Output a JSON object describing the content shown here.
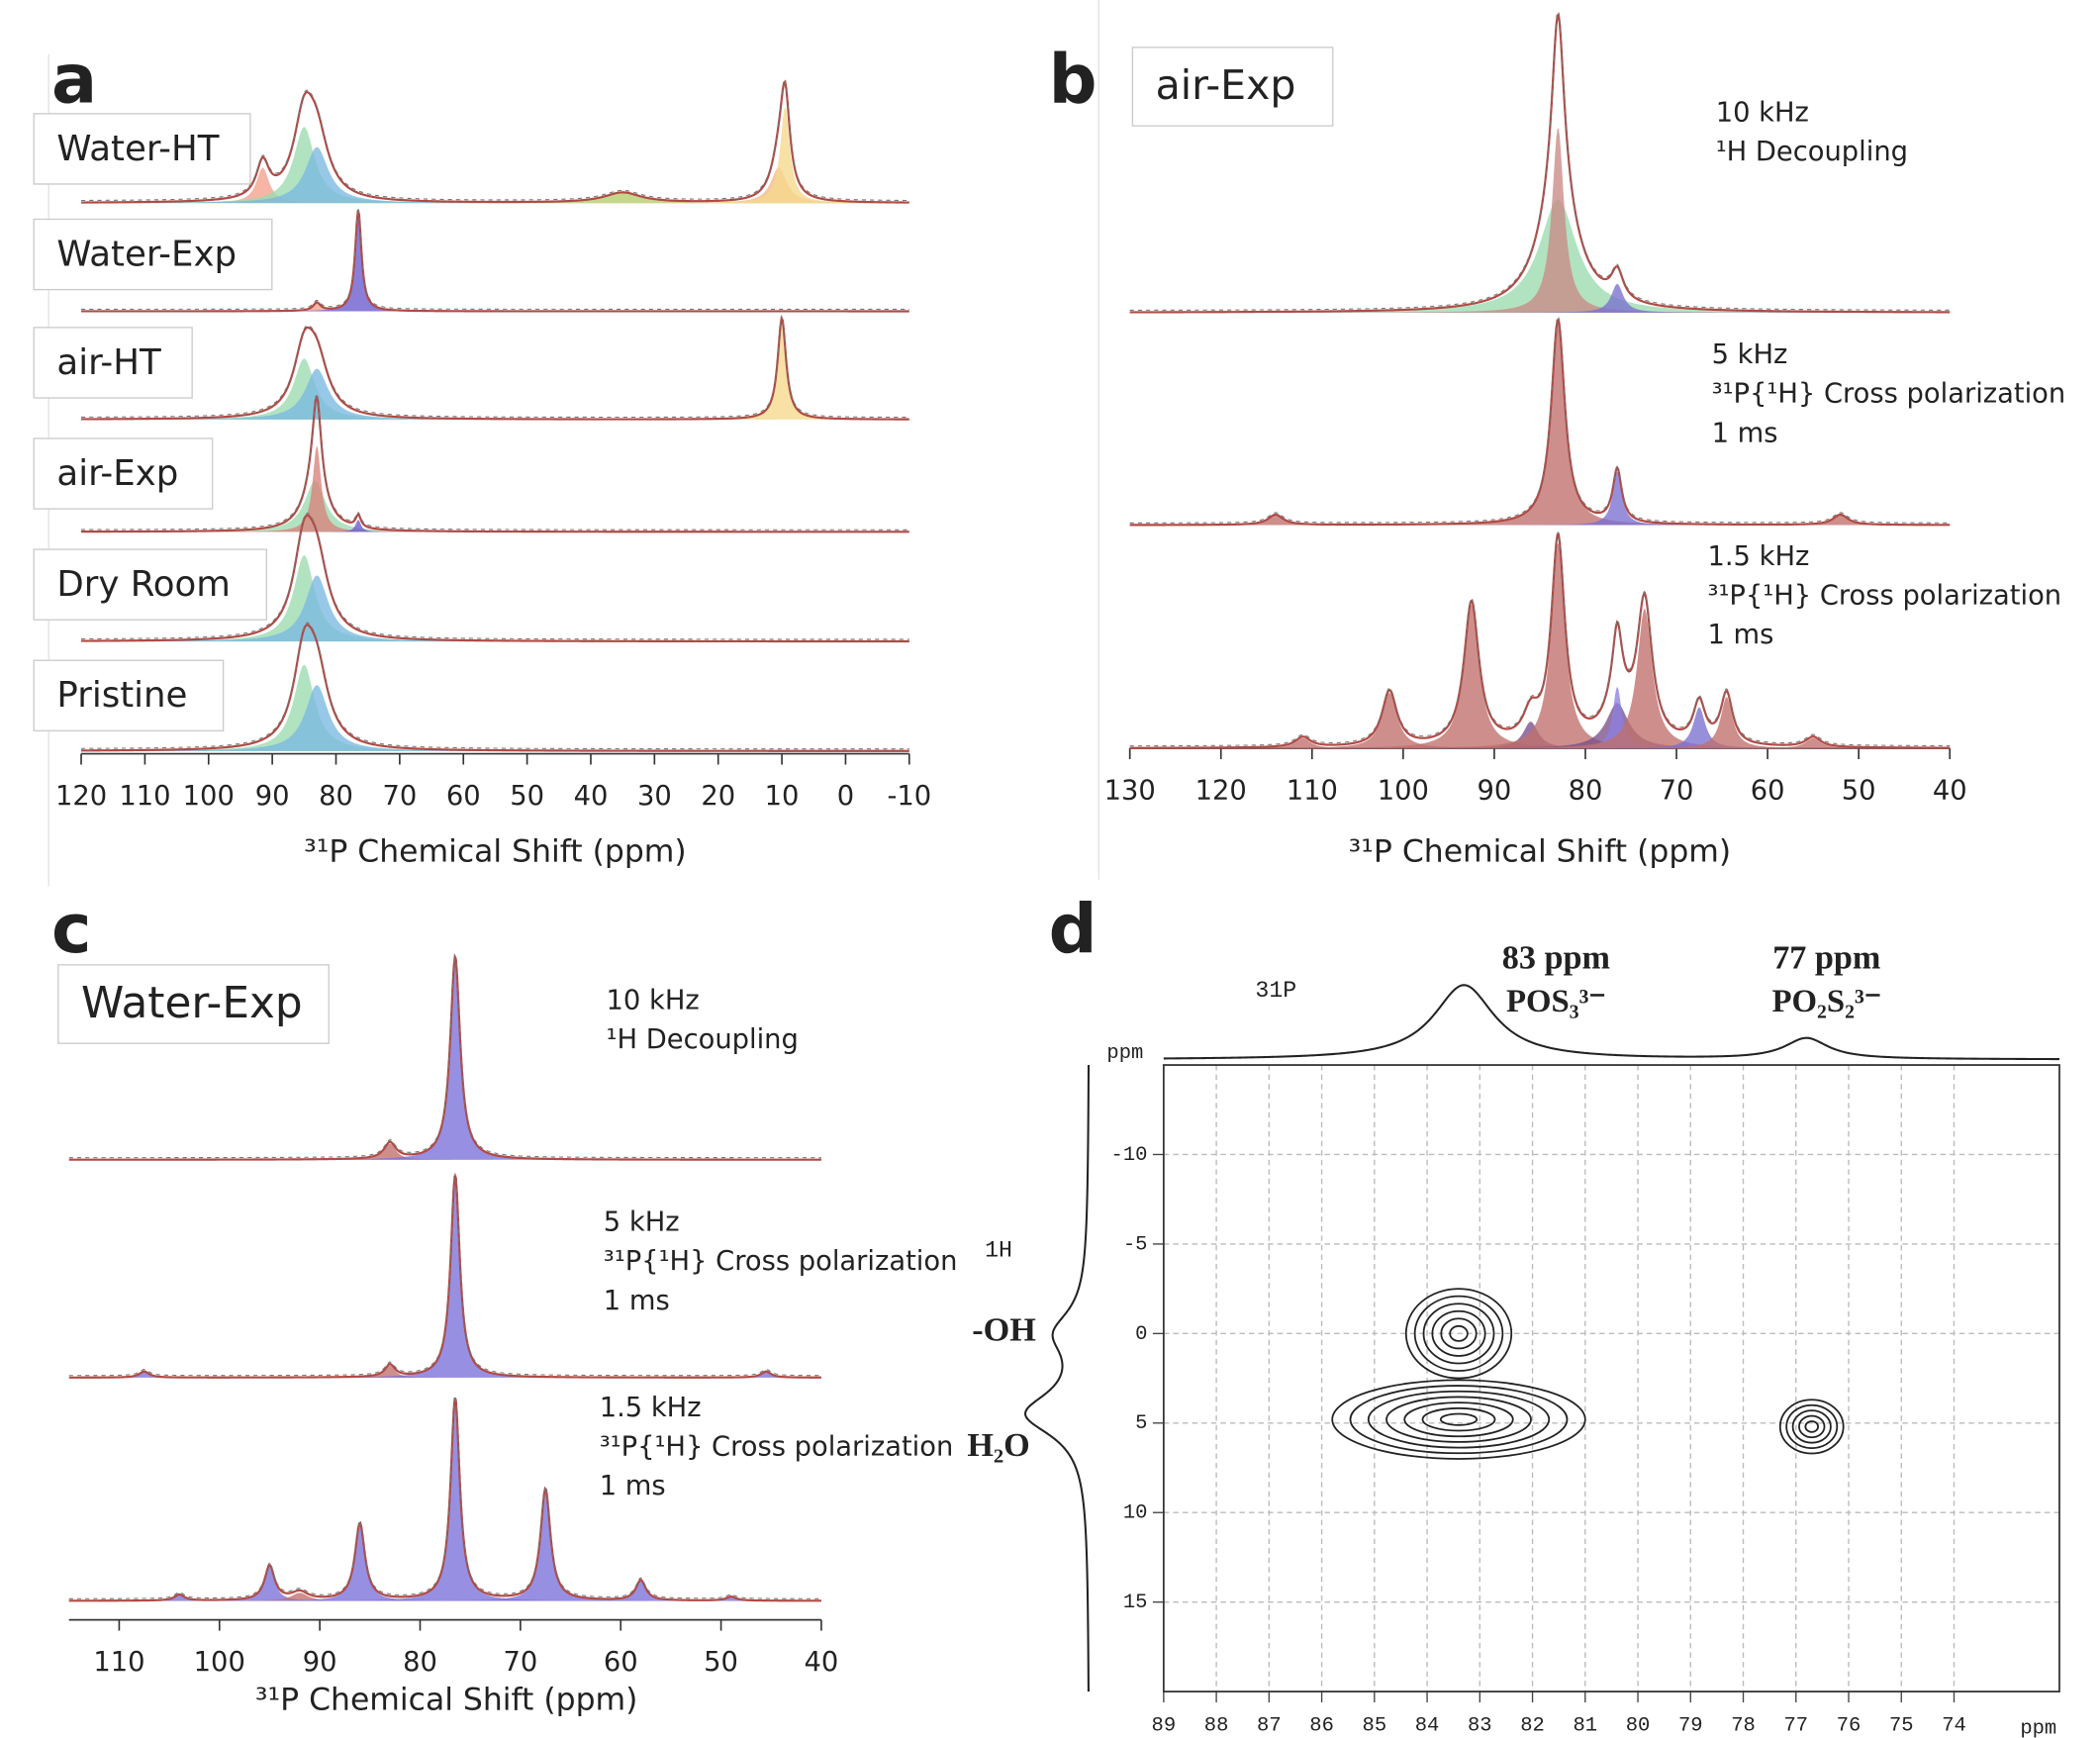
{
  "chart_data": [
    {
      "type": "spectrum",
      "panel_label": "a",
      "xlabel": "³¹P Chemical Shift (ppm)",
      "xlim": [
        120,
        -10
      ],
      "xticks": [
        120,
        110,
        100,
        90,
        80,
        70,
        60,
        50,
        40,
        30,
        20,
        10,
        0,
        -10
      ],
      "line_color": "#b04a45",
      "traces": [
        {
          "label": "Water-HT",
          "peaks": [
            {
              "center": 91.5,
              "height": 0.35,
              "width": 1.2,
              "color": "#f4a08c"
            },
            {
              "center": 85,
              "height": 0.75,
              "width": 2,
              "color": "#9bdbb0"
            },
            {
              "center": 83,
              "height": 0.55,
              "width": 2.2,
              "color": "#7ab8e0"
            },
            {
              "center": 35,
              "height": 0.1,
              "width": 3.5,
              "color": "#b5cc6a"
            },
            {
              "center": 10.5,
              "height": 0.35,
              "width": 1.5,
              "color": "#f4b98c"
            },
            {
              "center": 9.5,
              "height": 0.95,
              "width": 0.9,
              "color": "#f5d98b"
            }
          ]
        },
        {
          "label": "Water-Exp",
          "peaks": [
            {
              "center": 83,
              "height": 0.08,
              "width": 0.7,
              "color": "#f4a08c"
            },
            {
              "center": 76.5,
              "height": 1.0,
              "width": 0.6,
              "color": "#6a5acd"
            }
          ]
        },
        {
          "label": "air-HT",
          "peaks": [
            {
              "center": 85,
              "height": 0.6,
              "width": 2,
              "color": "#9bdbb0"
            },
            {
              "center": 83,
              "height": 0.5,
              "width": 2.2,
              "color": "#7ab8e0"
            },
            {
              "center": 10,
              "height": 1.0,
              "width": 0.8,
              "color": "#f5d98b"
            }
          ]
        },
        {
          "label": "air-Exp",
          "peaks": [
            {
              "center": 83.3,
              "height": 0.5,
              "width": 2,
              "color": "#9bdbb0"
            },
            {
              "center": 83,
              "height": 0.85,
              "width": 0.8,
              "color": "#d9827b"
            },
            {
              "center": 76.5,
              "height": 0.12,
              "width": 0.5,
              "color": "#6a5acd"
            }
          ]
        },
        {
          "label": "Dry Room",
          "peaks": [
            {
              "center": 85,
              "height": 0.85,
              "width": 2,
              "color": "#9bdbb0"
            },
            {
              "center": 83,
              "height": 0.65,
              "width": 2.2,
              "color": "#7ab8e0"
            }
          ]
        },
        {
          "label": "Pristine",
          "peaks": [
            {
              "center": 85,
              "height": 0.85,
              "width": 2,
              "color": "#9bdbb0"
            },
            {
              "center": 83,
              "height": 0.65,
              "width": 2.2,
              "color": "#7ab8e0"
            }
          ]
        }
      ]
    },
    {
      "type": "spectrum",
      "panel_label": "b",
      "sample": "air-Exp",
      "xlabel": "³¹P Chemical Shift (ppm)",
      "xlim": [
        130,
        40
      ],
      "xticks": [
        130,
        120,
        110,
        100,
        90,
        80,
        70,
        60,
        50,
        40
      ],
      "line_color": "#b04a45",
      "traces": [
        {
          "annotation": [
            "10 kHz",
            "¹H Decoupling"
          ],
          "peaks": [
            {
              "center": 83,
              "height": 0.55,
              "width": 2.5,
              "color": "#9bdbb0"
            },
            {
              "center": 83,
              "height": 0.9,
              "width": 0.8,
              "color": "#c98a86"
            },
            {
              "center": 76.5,
              "height": 0.14,
              "width": 0.8,
              "color": "#7a6fd0"
            }
          ]
        },
        {
          "annotation": [
            "5 kHz",
            "³¹P{¹H} Cross polarization",
            "1 ms"
          ],
          "peaks": [
            {
              "center": 114,
              "height": 0.05,
              "width": 1,
              "color": "#c0706b"
            },
            {
              "center": 83,
              "height": 1.0,
              "width": 0.9,
              "color": "#c0706b"
            },
            {
              "center": 76.5,
              "height": 0.26,
              "width": 0.6,
              "color": "#7a6fd0"
            },
            {
              "center": 52,
              "height": 0.05,
              "width": 1,
              "color": "#c0706b"
            }
          ]
        },
        {
          "annotation": [
            "1.5 kHz",
            "³¹P{¹H} Cross polarization",
            "1 ms"
          ],
          "peaks": [
            {
              "center": 111,
              "height": 0.05,
              "width": 1,
              "color": "#c0706b"
            },
            {
              "center": 101.5,
              "height": 0.27,
              "width": 1,
              "color": "#c0706b"
            },
            {
              "center": 92.5,
              "height": 0.7,
              "width": 1,
              "color": "#c0706b"
            },
            {
              "center": 86,
              "height": 0.13,
              "width": 1,
              "color": "#7a4f8a"
            },
            {
              "center": 83,
              "height": 1.0,
              "width": 0.9,
              "color": "#c0706b"
            },
            {
              "center": 76.5,
              "height": 0.22,
              "width": 1.5,
              "color": "#7a4f8a"
            },
            {
              "center": 76.5,
              "height": 0.3,
              "width": 0.6,
              "color": "#8c7fe0"
            },
            {
              "center": 73.5,
              "height": 0.68,
              "width": 1,
              "color": "#c0706b"
            },
            {
              "center": 67.5,
              "height": 0.2,
              "width": 0.8,
              "color": "#7a6fd0"
            },
            {
              "center": 64.5,
              "height": 0.25,
              "width": 0.8,
              "color": "#c0706b"
            },
            {
              "center": 55,
              "height": 0.05,
              "width": 1,
              "color": "#c0706b"
            }
          ]
        }
      ]
    },
    {
      "type": "spectrum",
      "panel_label": "c",
      "sample": "Water-Exp",
      "xlabel": "³¹P Chemical Shift (ppm)",
      "xlim": [
        115,
        40
      ],
      "xticks": [
        110,
        100,
        90,
        80,
        70,
        60,
        50,
        40
      ],
      "line_color": "#b04a45",
      "traces": [
        {
          "annotation": [
            "10 kHz",
            "¹H Decoupling"
          ],
          "peaks": [
            {
              "center": 83,
              "height": 0.08,
              "width": 0.7,
              "color": "#c0706b"
            },
            {
              "center": 76.5,
              "height": 1.0,
              "width": 0.6,
              "color": "#7a6fd8"
            }
          ]
        },
        {
          "annotation": [
            "5 kHz",
            "³¹P{¹H} Cross polarization",
            "1 ms"
          ],
          "peaks": [
            {
              "center": 107.5,
              "height": 0.03,
              "width": 0.6,
              "color": "#7a6fd8"
            },
            {
              "center": 83,
              "height": 0.06,
              "width": 0.6,
              "color": "#c0706b"
            },
            {
              "center": 76.5,
              "height": 1.0,
              "width": 0.55,
              "color": "#7a6fd8"
            },
            {
              "center": 45.5,
              "height": 0.03,
              "width": 0.6,
              "color": "#7a6fd8"
            }
          ]
        },
        {
          "annotation": [
            "1.5 kHz",
            "³¹P{¹H} Cross polarization",
            "1 ms"
          ],
          "peaks": [
            {
              "center": 104,
              "height": 0.03,
              "width": 0.6,
              "color": "#7a6fd8"
            },
            {
              "center": 95,
              "height": 0.17,
              "width": 0.6,
              "color": "#7a6fd8"
            },
            {
              "center": 92,
              "height": 0.04,
              "width": 1,
              "color": "#c0706b"
            },
            {
              "center": 86,
              "height": 0.38,
              "width": 0.6,
              "color": "#7a6fd8"
            },
            {
              "center": 76.5,
              "height": 1.0,
              "width": 0.55,
              "color": "#7a6fd8"
            },
            {
              "center": 67.5,
              "height": 0.55,
              "width": 0.6,
              "color": "#7a6fd8"
            },
            {
              "center": 58,
              "height": 0.1,
              "width": 0.6,
              "color": "#7a6fd8"
            },
            {
              "center": 49,
              "height": 0.02,
              "width": 0.6,
              "color": "#7a6fd8"
            }
          ]
        }
      ]
    },
    {
      "type": "contour",
      "panel_label": "d",
      "xlim": [
        89,
        72
      ],
      "ylim": [
        -15,
        20
      ],
      "xticks": [
        89,
        88,
        87,
        86,
        85,
        84,
        83,
        82,
        81,
        80,
        79,
        78,
        77,
        76,
        75,
        74
      ],
      "yticks": [
        -10,
        -5,
        0,
        5,
        10,
        15
      ],
      "grid": true,
      "xlabel": "ppm",
      "ylabel": "ppm",
      "x_nucleus": "31P",
      "y_nucleus": "1H",
      "peak_labels": [
        {
          "shift": "83 ppm",
          "species": "POS₃³⁻"
        },
        {
          "shift": "77 ppm",
          "species": "PO₂S₂³⁻"
        }
      ],
      "proton_labels": [
        "-OH",
        "H₂O"
      ],
      "projection_x": [
        {
          "center": 83.3,
          "height": 1,
          "width": 0.7
        },
        {
          "center": 76.8,
          "height": 0.28,
          "width": 0.5
        }
      ],
      "projection_y": [
        {
          "center": 0,
          "height": 0.5,
          "width": 1.5
        },
        {
          "center": 4.5,
          "height": 1,
          "width": 1.5
        }
      ],
      "contours": [
        {
          "x": 83.4,
          "y": 0,
          "rx": 1.0,
          "ry": 2.5,
          "levels": 6
        },
        {
          "x": 83.4,
          "y": 4.8,
          "rx": 2.4,
          "ry": 2.2,
          "levels": 7
        },
        {
          "x": 76.7,
          "y": 5.2,
          "rx": 0.6,
          "ry": 1.5,
          "levels": 5
        }
      ]
    }
  ]
}
